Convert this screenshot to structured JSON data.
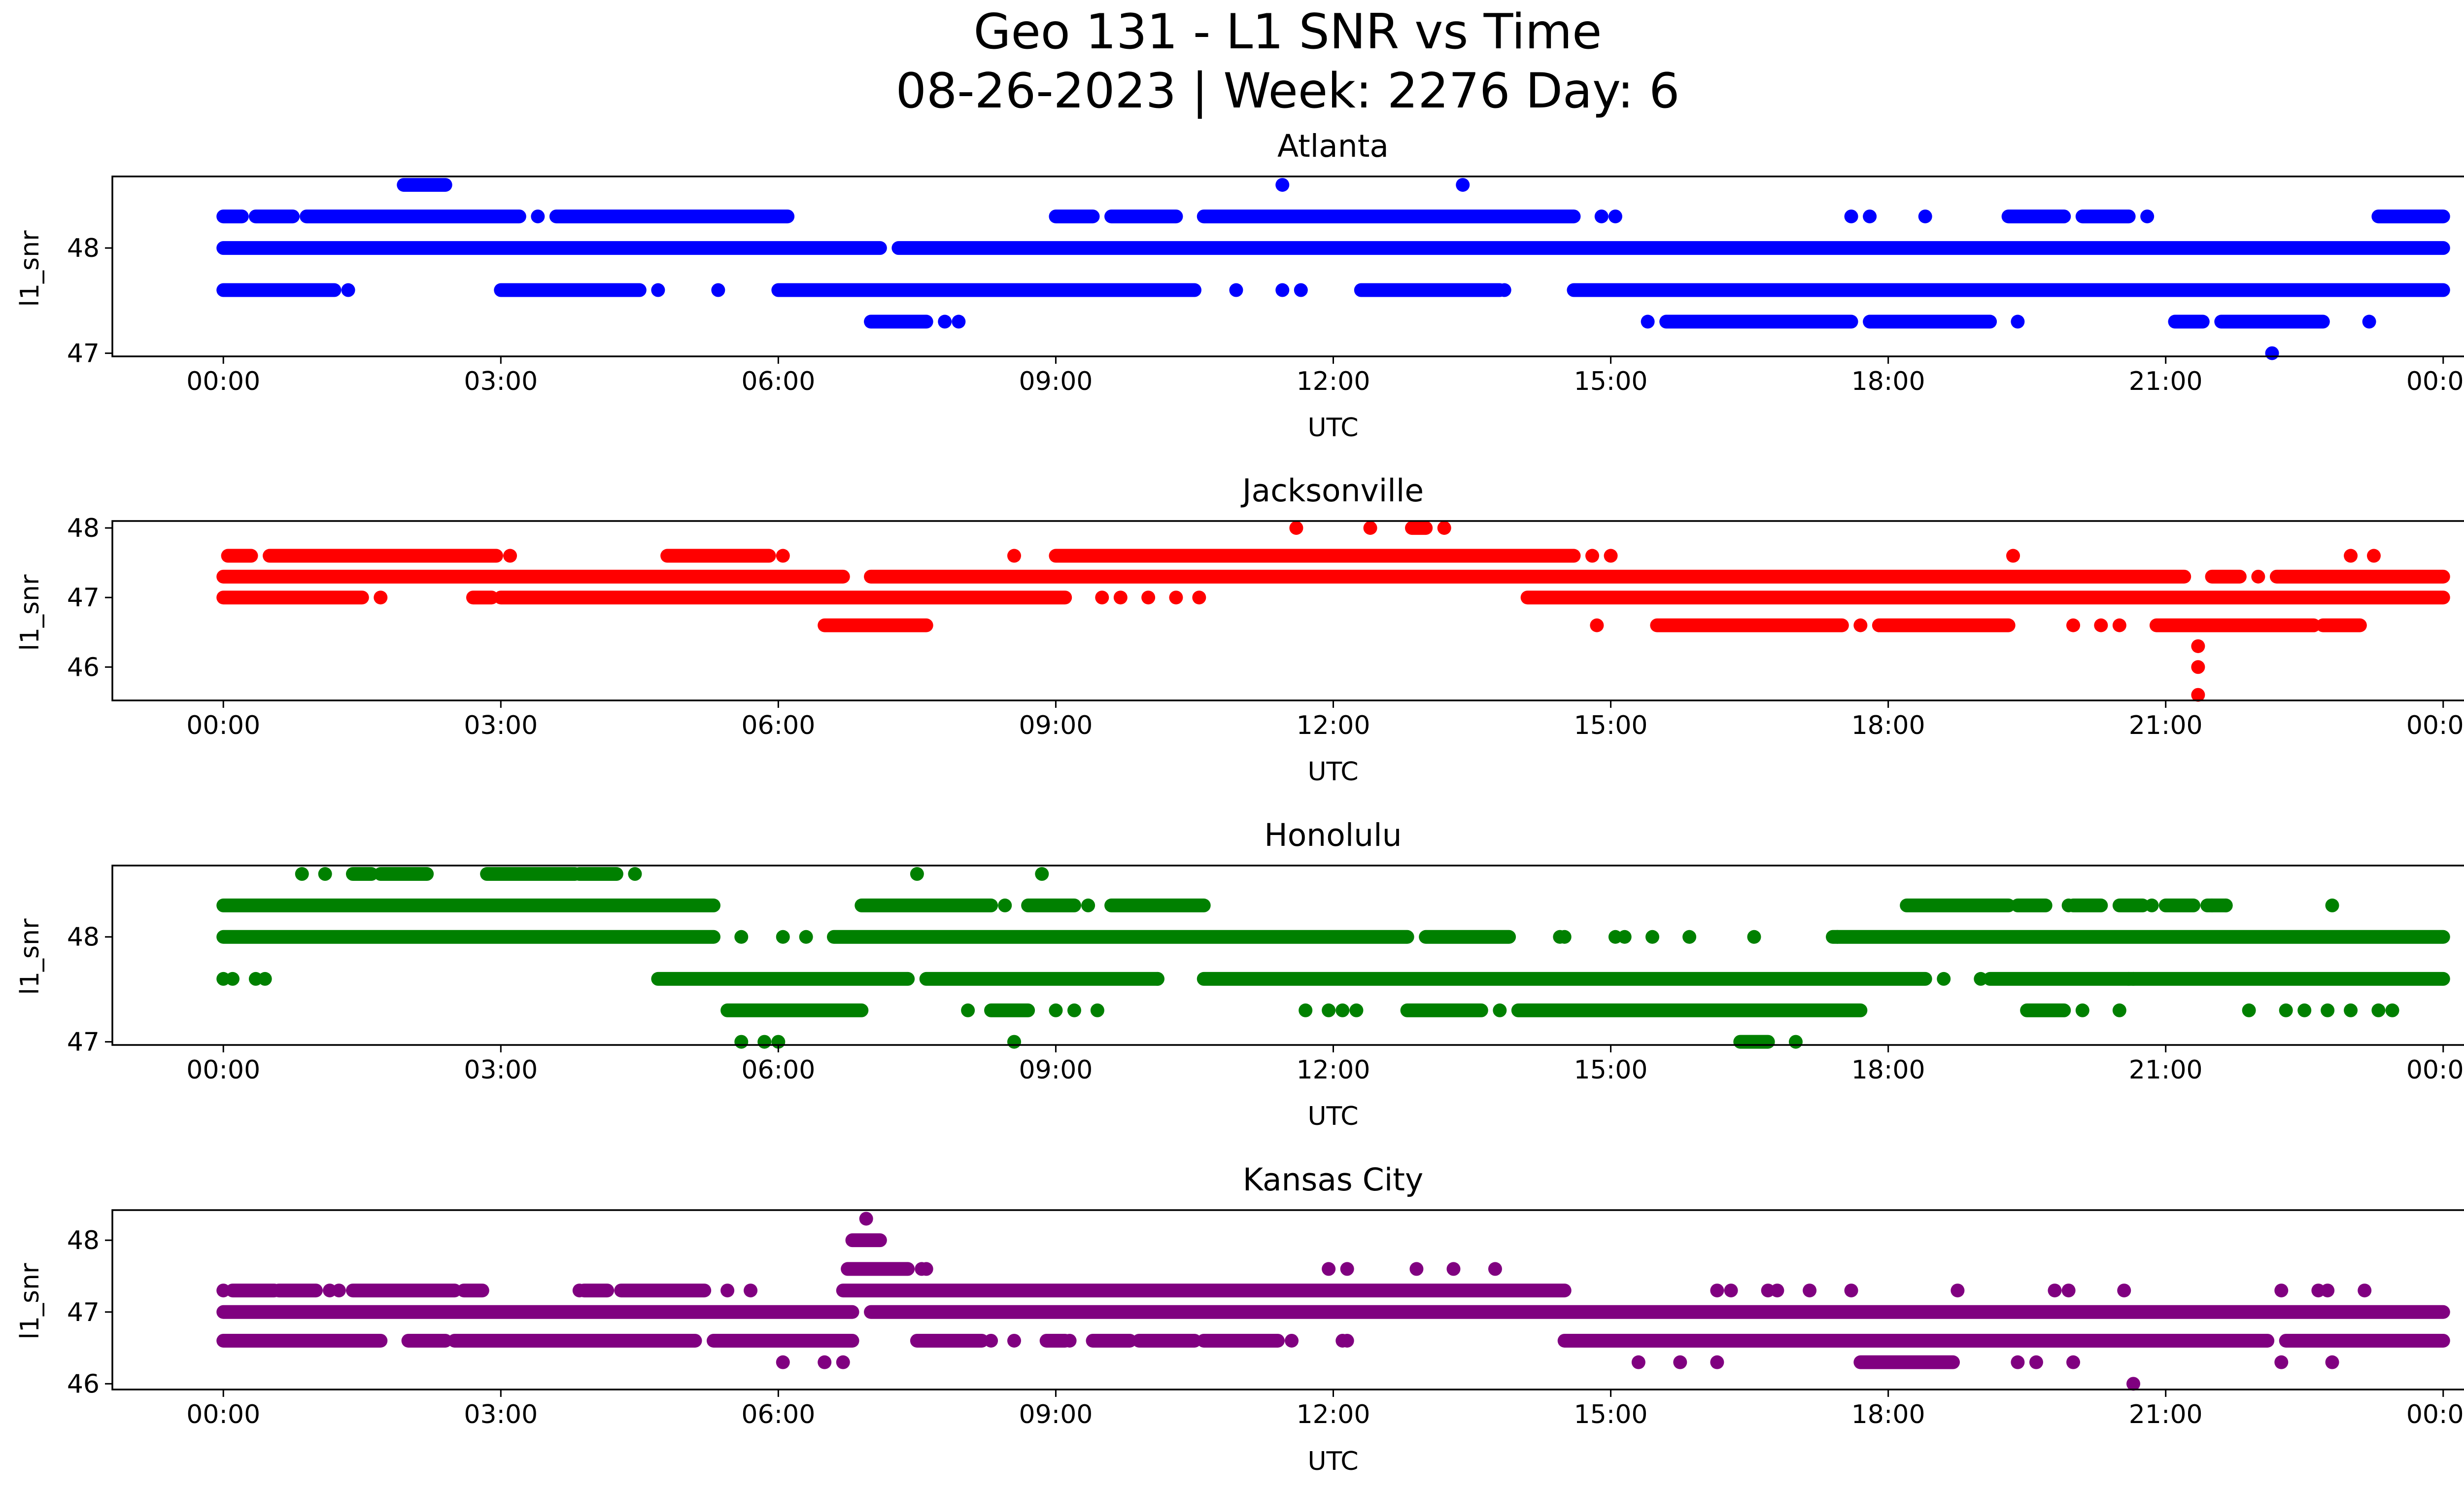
{
  "title_line1": "Geo 131 - L1 SNR vs Time",
  "title_line2": "08-26-2023 | Week: 2276 Day: 6",
  "x_tick_labels": [
    "00:00",
    "03:00",
    "06:00",
    "09:00",
    "12:00",
    "15:00",
    "18:00",
    "21:00",
    "00:00"
  ],
  "chart_data": [
    {
      "type": "scatter",
      "title": "Atlanta",
      "xlabel": "UTC",
      "ylabel": "l1_snr",
      "color": "#0000ff",
      "xlim": [
        -1.2,
        25.2
      ],
      "ylim": [
        46.97,
        48.68
      ],
      "yticks": [
        47,
        48
      ],
      "xticks_hours": [
        0,
        3,
        6,
        9,
        12,
        15,
        18,
        21,
        24
      ],
      "levels": [
        {
          "y": 48.6,
          "ranges": [
            [
              1.95,
              2.4
            ]
          ],
          "points": [
            11.45,
            13.4
          ]
        },
        {
          "y": 48.3,
          "ranges": [
            [
              0,
              0.2
            ],
            [
              0.35,
              0.75
            ],
            [
              0.9,
              3.2
            ],
            [
              3.6,
              6.1
            ],
            [
              9.0,
              9.4
            ],
            [
              9.6,
              10.3
            ],
            [
              10.6,
              14.6
            ],
            [
              17.6,
              17.6
            ],
            [
              19.3,
              19.9
            ],
            [
              20.1,
              20.6
            ],
            [
              23.3,
              24
            ]
          ],
          "points": [
            3.4,
            14.9,
            15.05,
            18.4,
            20.8,
            17.8
          ]
        },
        {
          "y": 48.0,
          "ranges": [
            [
              0,
              7.1
            ],
            [
              7.3,
              24
            ]
          ],
          "points": []
        },
        {
          "y": 47.6,
          "ranges": [
            [
              0,
              1.2
            ],
            [
              3.0,
              4.5
            ],
            [
              6.0,
              10.5
            ],
            [
              12.3,
              13.8
            ],
            [
              14.6,
              24
            ]
          ],
          "points": [
            1.35,
            4.7,
            5.35,
            10.95,
            11.45,
            11.65,
            12.75,
            13.85
          ]
        },
        {
          "y": 47.3,
          "ranges": [
            [
              7.0,
              7.6
            ],
            [
              15.6,
              17.6
            ],
            [
              17.8,
              19.1
            ],
            [
              21.1,
              21.4
            ],
            [
              21.6,
              22.7
            ]
          ],
          "points": [
            7.8,
            7.95,
            19.4,
            15.4,
            23.2
          ]
        },
        {
          "y": 47.0,
          "ranges": [],
          "points": [
            22.15
          ]
        }
      ]
    },
    {
      "type": "scatter",
      "title": "Jacksonville",
      "xlabel": "UTC",
      "ylabel": "l1_snr",
      "color": "#ff0000",
      "xlim": [
        -1.2,
        25.2
      ],
      "ylim": [
        45.52,
        48.1
      ],
      "yticks": [
        46,
        47,
        48
      ],
      "xticks_hours": [
        0,
        3,
        6,
        9,
        12,
        15,
        18,
        21,
        24
      ],
      "levels": [
        {
          "y": 48.0,
          "ranges": [
            [
              12.85,
              13.0
            ]
          ],
          "points": [
            11.6,
            12.4,
            13.2
          ]
        },
        {
          "y": 47.6,
          "ranges": [
            [
              0.05,
              0.3
            ],
            [
              0.5,
              2.95
            ],
            [
              4.8,
              5.9
            ],
            [
              9.0,
              14.6
            ]
          ],
          "points": [
            3.1,
            6.05,
            8.55,
            14.8,
            15.0,
            19.35,
            23.0,
            23.25
          ]
        },
        {
          "y": 47.3,
          "ranges": [
            [
              0,
              6.7
            ],
            [
              7.0,
              21.2
            ],
            [
              21.5,
              21.8
            ],
            [
              22.2,
              24
            ]
          ],
          "points": [
            22.0
          ]
        },
        {
          "y": 47.0,
          "ranges": [
            [
              0,
              1.5
            ],
            [
              2.7,
              2.9
            ],
            [
              3.0,
              9.1
            ],
            [
              14.1,
              24
            ]
          ],
          "points": [
            1.7,
            9.5,
            9.7,
            10.0,
            10.3,
            10.55
          ]
        },
        {
          "y": 46.6,
          "ranges": [
            [
              6.5,
              7.6
            ],
            [
              15.5,
              17.5
            ],
            [
              17.9,
              19.3
            ],
            [
              20.9,
              22.6
            ],
            [
              22.7,
              23.1
            ]
          ],
          "points": [
            14.85,
            17.7,
            20.0,
            20.3,
            20.5
          ]
        },
        {
          "y": 46.3,
          "ranges": [],
          "points": [
            21.35
          ]
        },
        {
          "y": 46.0,
          "ranges": [],
          "points": [
            21.35
          ]
        },
        {
          "y": 45.6,
          "ranges": [],
          "points": [
            21.35
          ]
        }
      ]
    },
    {
      "type": "scatter",
      "title": "Honolulu",
      "xlabel": "UTC",
      "ylabel": "l1_snr",
      "color": "#008000",
      "xlim": [
        -1.2,
        25.2
      ],
      "ylim": [
        46.97,
        48.68
      ],
      "yticks": [
        47,
        48
      ],
      "xticks_hours": [
        0,
        3,
        6,
        9,
        12,
        15,
        18,
        21,
        24
      ],
      "levels": [
        {
          "y": 48.6,
          "ranges": [
            [
              1.4,
              1.6
            ],
            [
              1.7,
              2.2
            ],
            [
              2.85,
              3.5
            ],
            [
              3.5,
              3.8
            ],
            [
              3.85,
              4.25
            ]
          ],
          "points": [
            0.85,
            1.1,
            4.45,
            7.5,
            8.85
          ]
        },
        {
          "y": 48.3,
          "ranges": [
            [
              0,
              5.3
            ],
            [
              6.9,
              8.3
            ],
            [
              8.7,
              9.2
            ],
            [
              9.6,
              10.6
            ],
            [
              18.2,
              19.3
            ],
            [
              19.4,
              19.7
            ],
            [
              20.0,
              20.3
            ],
            [
              20.5,
              20.75
            ],
            [
              21.0,
              21.3
            ],
            [
              21.45,
              21.65
            ]
          ],
          "points": [
            8.45,
            9.35,
            19.95,
            20.85,
            21.5,
            21.65,
            22.8
          ]
        },
        {
          "y": 48.0,
          "ranges": [
            [
              0,
              5.3
            ],
            [
              6.6,
              12.8
            ],
            [
              13.0,
              13.9
            ],
            [
              14.5,
              14.5
            ],
            [
              17.4,
              24
            ]
          ],
          "points": [
            5.6,
            6.05,
            6.3,
            14.45,
            15.05,
            15.15,
            15.45,
            15.85,
            16.55,
            17.45
          ]
        },
        {
          "y": 47.6,
          "ranges": [
            [
              4.7,
              7.4
            ],
            [
              7.6,
              10.1
            ],
            [
              10.6,
              18.4
            ],
            [
              19.1,
              24
            ]
          ],
          "points": [
            0,
            0.1,
            0.35,
            0.45,
            10.1,
            18.6,
            19.0,
            20.6,
            20.65
          ]
        },
        {
          "y": 47.3,
          "ranges": [
            [
              5.45,
              6.9
            ],
            [
              8.3,
              8.7
            ],
            [
              12.8,
              13.6
            ],
            [
              14.0,
              17.7
            ],
            [
              19.5,
              19.9
            ]
          ],
          "points": [
            8.05,
            9.0,
            9.2,
            9.45,
            11.7,
            11.95,
            12.1,
            12.25,
            13.8,
            20.1,
            20.5,
            21.9,
            22.3,
            22.5,
            22.75,
            23.0,
            23.3,
            23.45
          ]
        },
        {
          "y": 47.0,
          "ranges": [
            [
              16.4,
              16.7
            ]
          ],
          "points": [
            5.6,
            5.85,
            6.0,
            8.55,
            17.0
          ]
        }
      ]
    },
    {
      "type": "scatter",
      "title": "Kansas City",
      "xlabel": "UTC",
      "ylabel": "l1_snr",
      "color": "#800080",
      "xlim": [
        -1.2,
        25.2
      ],
      "ylim": [
        45.92,
        48.42
      ],
      "yticks": [
        46,
        47,
        48
      ],
      "xticks_hours": [
        0,
        3,
        6,
        9,
        12,
        15,
        18,
        21,
        24
      ],
      "levels": [
        {
          "y": 48.3,
          "ranges": [],
          "points": [
            6.95
          ]
        },
        {
          "y": 48.0,
          "ranges": [
            [
              6.8,
              7.1
            ]
          ],
          "points": []
        },
        {
          "y": 47.6,
          "ranges": [
            [
              6.75,
              7.4
            ]
          ],
          "points": [
            7.55,
            7.6,
            11.95,
            12.15,
            12.9,
            13.3,
            13.75
          ]
        },
        {
          "y": 47.3,
          "ranges": [
            [
              0.1,
              0.55
            ],
            [
              0.6,
              1.0
            ],
            [
              1.4,
              2.5
            ],
            [
              2.6,
              2.8
            ],
            [
              3.9,
              4.15
            ],
            [
              4.3,
              5.2
            ],
            [
              6.7,
              14.5
            ]
          ],
          "points": [
            0,
            1.15,
            1.25,
            3.85,
            5.45,
            5.7,
            16.15,
            16.3,
            16.7,
            16.8,
            17.15,
            17.6,
            18.75,
            19.8,
            19.95,
            20.55,
            22.25,
            22.65,
            22.75,
            23.15
          ]
        },
        {
          "y": 47.0,
          "ranges": [
            [
              0,
              6.8
            ],
            [
              7.0,
              24
            ]
          ],
          "points": []
        },
        {
          "y": 46.6,
          "ranges": [
            [
              0,
              1.7
            ],
            [
              2.0,
              2.4
            ],
            [
              2.5,
              5.1
            ],
            [
              5.3,
              6.8
            ],
            [
              7.5,
              8.2
            ],
            [
              8.9,
              9.1
            ],
            [
              9.4,
              9.8
            ],
            [
              9.9,
              10.5
            ],
            [
              10.6,
              11.4
            ],
            [
              14.5,
              22.1
            ],
            [
              22.3,
              24
            ]
          ],
          "points": [
            4.8,
            8.3,
            8.55,
            9.15,
            10.7,
            11.55,
            12.1,
            12.15
          ]
        },
        {
          "y": 46.3,
          "ranges": [
            [
              17.7,
              18.7
            ]
          ],
          "points": [
            6.05,
            6.5,
            6.7,
            15.3,
            15.75,
            16.15,
            19.4,
            19.6,
            20.0,
            22.25,
            22.8
          ]
        },
        {
          "y": 46.0,
          "ranges": [],
          "points": [
            20.65
          ]
        }
      ]
    }
  ]
}
